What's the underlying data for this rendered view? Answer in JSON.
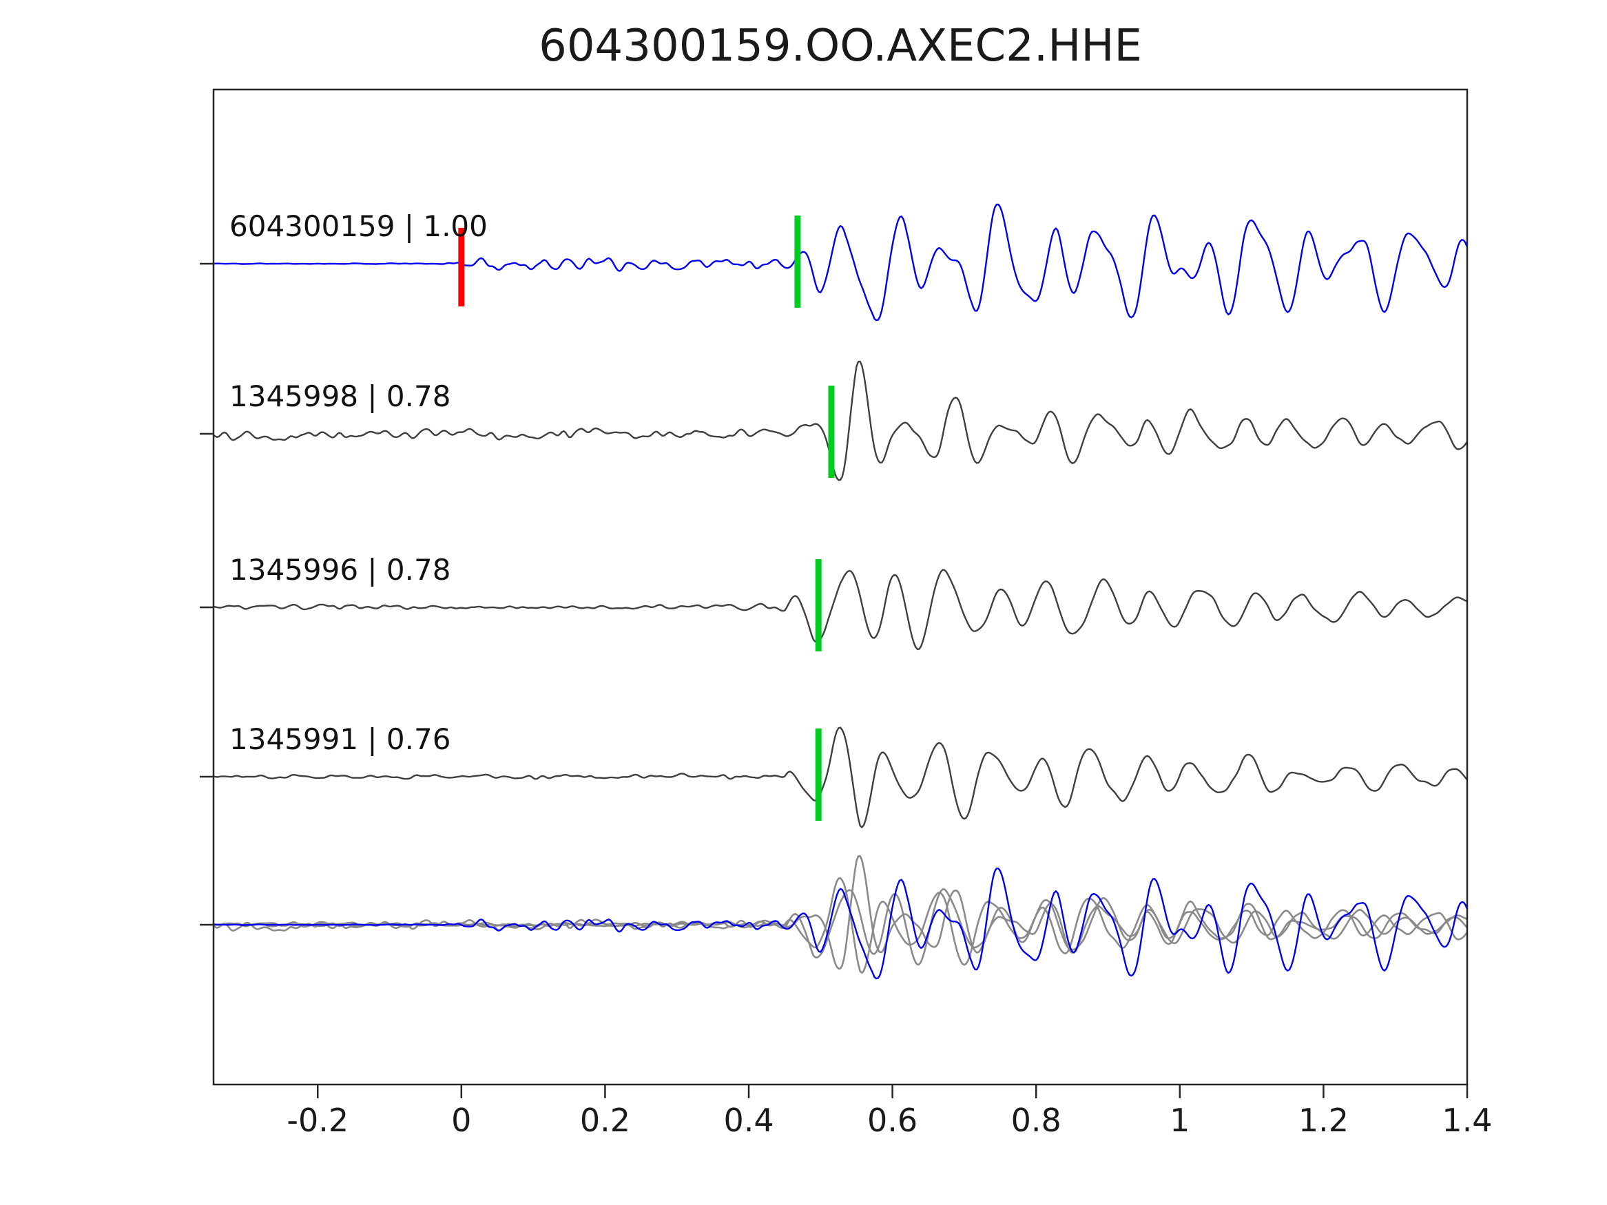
{
  "title": "604300159.OO.AXEC2.HHE",
  "colors": {
    "reference_trace": "#0000ee",
    "match_trace": "#3f3f3f",
    "overlay_gray": "#8a8a8a",
    "pick_marker": "#00cc22",
    "origin_marker": "#ff0000",
    "axis": "#262626",
    "label_text": "#111111"
  },
  "chart_data": {
    "type": "line",
    "subtype": "seismogram-correlation-stack",
    "title": "604300159.OO.AXEC2.HHE",
    "xlabel": "",
    "ylabel": "",
    "grid": false,
    "legend": "none",
    "xlim": [
      -0.345,
      1.4
    ],
    "x_ticks": [
      {
        "value": -0.2,
        "label": "-0.2"
      },
      {
        "value": 0,
        "label": "0"
      },
      {
        "value": 0.2,
        "label": "0.2"
      },
      {
        "value": 0.4,
        "label": "0.4"
      },
      {
        "value": 0.6,
        "label": "0.6"
      },
      {
        "value": 0.8,
        "label": "0.8"
      },
      {
        "value": 1,
        "label": "1"
      },
      {
        "value": 1.2,
        "label": "1.2"
      },
      {
        "value": 1.4,
        "label": "1.4"
      }
    ],
    "traces": [
      {
        "id": "604300159",
        "correlation": "1.00",
        "label": "604300159 | 1.00",
        "role": "reference",
        "color": "#0000ee",
        "pick_time": 0.468,
        "origin_time": 0.0,
        "seed": 11,
        "freqs": [
          [
            14,
            0.5
          ],
          [
            8.5,
            0.3
          ],
          [
            23,
            0.2
          ]
        ],
        "noise_envelope": [
          [
            -0.345,
            1
          ],
          [
            -0.03,
            1
          ],
          [
            0.0,
            7
          ],
          [
            0.05,
            14
          ],
          [
            0.3,
            14
          ],
          [
            0.42,
            10
          ],
          [
            0.5,
            7
          ],
          [
            1.4,
            6
          ]
        ],
        "signal_envelope": [
          [
            -0.345,
            0
          ],
          [
            0.44,
            0
          ],
          [
            0.465,
            70
          ],
          [
            0.5,
            85
          ],
          [
            0.535,
            60
          ],
          [
            0.575,
            115
          ],
          [
            0.62,
            80
          ],
          [
            0.665,
            150
          ],
          [
            0.71,
            85
          ],
          [
            0.77,
            100
          ],
          [
            0.83,
            110
          ],
          [
            0.9,
            80
          ],
          [
            0.97,
            95
          ],
          [
            1.05,
            100
          ],
          [
            1.13,
            85
          ],
          [
            1.22,
            95
          ],
          [
            1.3,
            65
          ],
          [
            1.4,
            80
          ]
        ]
      },
      {
        "id": "1345998",
        "correlation": "0.78",
        "label": "1345998 | 0.78",
        "role": "match",
        "color": "#3f3f3f",
        "pick_time": 0.515,
        "seed": 22,
        "freqs": [
          [
            15,
            0.55
          ],
          [
            9,
            0.25
          ],
          [
            22,
            0.2
          ]
        ],
        "noise_envelope": [
          [
            -0.345,
            12
          ],
          [
            0.4,
            12
          ],
          [
            0.5,
            8
          ],
          [
            1.4,
            7
          ]
        ],
        "signal_envelope": [
          [
            -0.345,
            0
          ],
          [
            0.45,
            0
          ],
          [
            0.48,
            35
          ],
          [
            0.515,
            60
          ],
          [
            0.55,
            120
          ],
          [
            0.59,
            95
          ],
          [
            0.64,
            60
          ],
          [
            0.7,
            55
          ],
          [
            0.78,
            55
          ],
          [
            0.88,
            45
          ],
          [
            1.0,
            40
          ],
          [
            1.15,
            30
          ],
          [
            1.3,
            25
          ],
          [
            1.4,
            22
          ]
        ]
      },
      {
        "id": "1345996",
        "correlation": "0.78",
        "label": "1345996 | 0.78",
        "role": "match",
        "color": "#3f3f3f",
        "pick_time": 0.497,
        "seed": 33,
        "freqs": [
          [
            14,
            0.6
          ],
          [
            8.5,
            0.25
          ],
          [
            20,
            0.15
          ]
        ],
        "noise_envelope": [
          [
            -0.345,
            5
          ],
          [
            0.3,
            5
          ],
          [
            0.42,
            7
          ],
          [
            0.5,
            5
          ],
          [
            1.4,
            5
          ]
        ],
        "signal_envelope": [
          [
            -0.345,
            0
          ],
          [
            0.45,
            0
          ],
          [
            0.49,
            55
          ],
          [
            0.53,
            80
          ],
          [
            0.555,
            125
          ],
          [
            0.6,
            85
          ],
          [
            0.66,
            65
          ],
          [
            0.73,
            60
          ],
          [
            0.8,
            50
          ],
          [
            0.9,
            55
          ],
          [
            1.0,
            40
          ],
          [
            1.15,
            30
          ],
          [
            1.3,
            22
          ],
          [
            1.4,
            20
          ]
        ]
      },
      {
        "id": "1345991",
        "correlation": "0.76",
        "label": "1345991 | 0.76",
        "role": "match",
        "color": "#3f3f3f",
        "pick_time": 0.497,
        "seed": 44,
        "freqs": [
          [
            14,
            0.6
          ],
          [
            9,
            0.25
          ],
          [
            21,
            0.15
          ]
        ],
        "noise_envelope": [
          [
            -0.345,
            5
          ],
          [
            0.42,
            6
          ],
          [
            1.4,
            5
          ]
        ],
        "signal_envelope": [
          [
            -0.345,
            0
          ],
          [
            0.45,
            0
          ],
          [
            0.49,
            50
          ],
          [
            0.53,
            85
          ],
          [
            0.555,
            125
          ],
          [
            0.6,
            90
          ],
          [
            0.66,
            60
          ],
          [
            0.73,
            65
          ],
          [
            0.8,
            55
          ],
          [
            0.9,
            50
          ],
          [
            1.0,
            42
          ],
          [
            1.15,
            28
          ],
          [
            1.3,
            22
          ],
          [
            1.4,
            20
          ]
        ]
      }
    ],
    "overlay": {
      "description": "all traces superimposed on bottom row",
      "scale": 0.95,
      "gray_color": "#8a8a8a"
    }
  }
}
